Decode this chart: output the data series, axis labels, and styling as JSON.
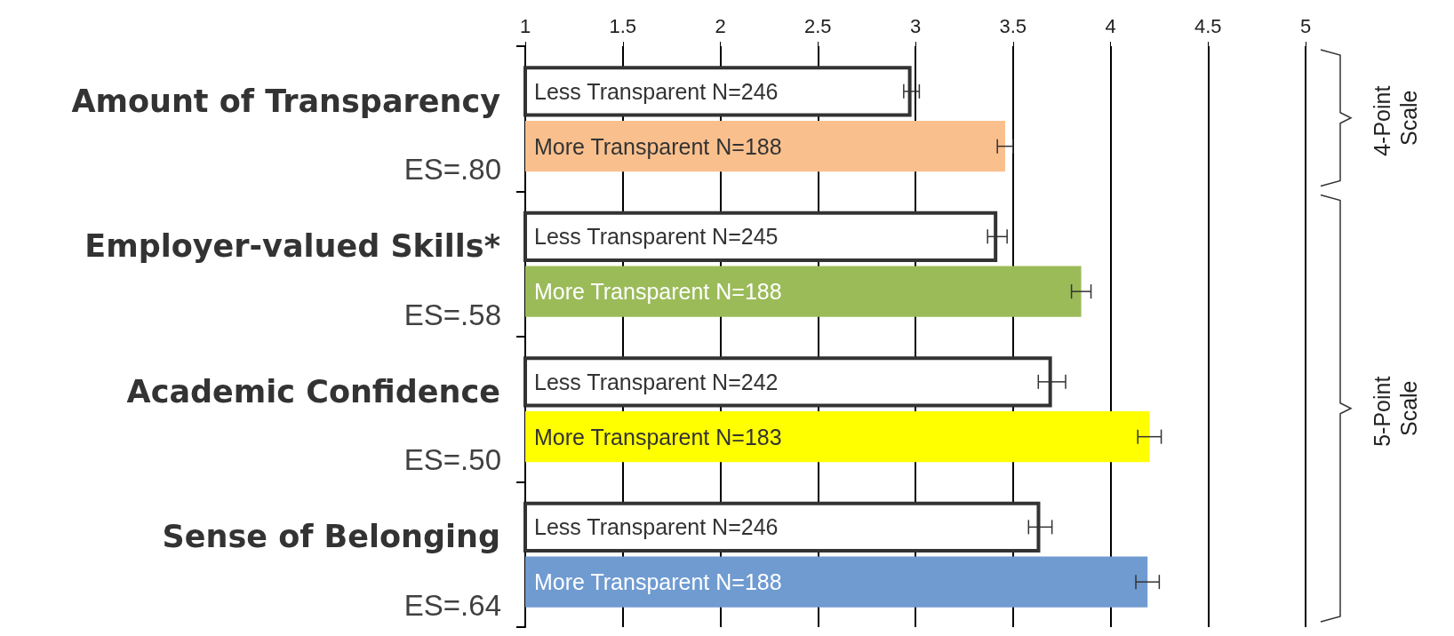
{
  "chart_data": {
    "type": "bar",
    "orientation": "horizontal",
    "categories": [
      "Amount of Transparency",
      "Employer-valued Skills*",
      "Academic Confidence",
      "Sense of Belonging"
    ],
    "series": [
      {
        "color": "#ffffff",
        "values": [
          2.98,
          3.42,
          3.7,
          3.64
        ],
        "errors": [
          0.04,
          0.05,
          0.07,
          0.06
        ]
      },
      {
        "colors": [
          "#f9c08e",
          "#9bbb59",
          "#ffff00",
          "#6f9bd1"
        ],
        "values": [
          3.46,
          3.85,
          4.2,
          4.19
        ],
        "errors": [
          0.04,
          0.05,
          0.06,
          0.06
        ]
      }
    ],
    "xlim": [
      1,
      5
    ],
    "xticks": [
      1,
      1.5,
      2,
      2.5,
      3,
      3.5,
      4,
      4.5,
      5
    ],
    "grid": "x",
    "annotations": [
      "Less Transparent N=246",
      "More Transparent N=188",
      "Less Transparent N=245",
      "More Transparent N=188",
      "Less Transparent N=242",
      "More Transparent N=183",
      "Less Transparent N=246",
      "More Transparent N=188",
      "ES=.80",
      "ES=.58",
      "ES=.50",
      "ES=.64",
      "4-Point Scale",
      "5-Point Scale"
    ]
  }
}
